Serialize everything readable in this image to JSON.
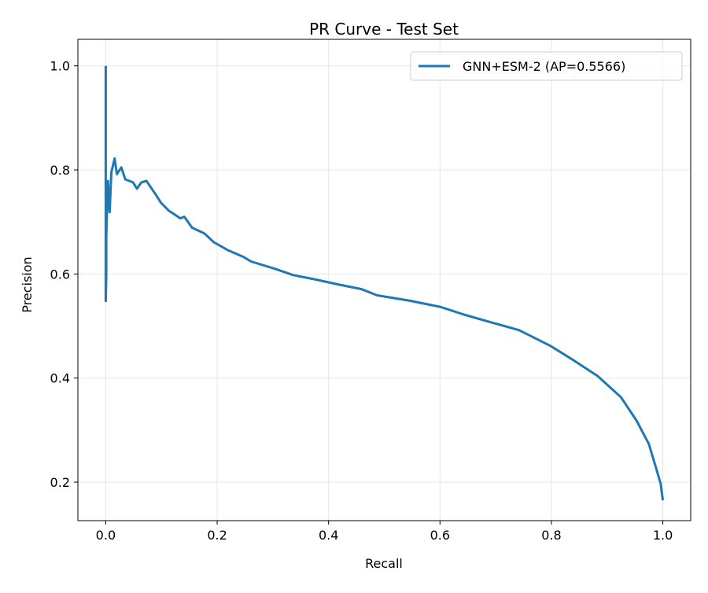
{
  "chart_data": {
    "type": "line",
    "title": "PR Curve - Test Set",
    "xlabel": "Recall",
    "ylabel": "Precision",
    "xlim": [
      -0.05,
      1.05
    ],
    "ylim": [
      0.126,
      1.051
    ],
    "xticks": [
      0.0,
      0.2,
      0.4,
      0.6,
      0.8,
      1.0
    ],
    "xtick_labels": [
      "0.0",
      "0.2",
      "0.4",
      "0.6",
      "0.8",
      "1.0"
    ],
    "yticks": [
      0.2,
      0.4,
      0.6,
      0.8,
      1.0
    ],
    "ytick_labels": [
      "0.2",
      "0.4",
      "0.6",
      "0.8",
      "1.0"
    ],
    "grid": true,
    "legend_position": "top-right",
    "series": [
      {
        "name": "GNN+ESM-2 (AP=0.5566)",
        "color": "#1f77b4",
        "x": [
          0,
          0,
          0.001,
          0.001,
          0.004,
          0.007,
          0.01,
          0.016,
          0.02,
          0.028,
          0.035,
          0.049,
          0.056,
          0.064,
          0.073,
          0.092,
          0.099,
          0.113,
          0.134,
          0.141,
          0.155,
          0.177,
          0.194,
          0.219,
          0.247,
          0.261,
          0.304,
          0.336,
          0.374,
          0.417,
          0.459,
          0.487,
          0.544,
          0.6,
          0.643,
          0.692,
          0.742,
          0.798,
          0.84,
          0.883,
          0.925,
          0.953,
          0.975,
          0.989,
          0.996,
          1.0
        ],
        "y": [
          1.0,
          0.548,
          0.6,
          0.673,
          0.779,
          0.719,
          0.795,
          0.822,
          0.792,
          0.805,
          0.782,
          0.776,
          0.764,
          0.776,
          0.779,
          0.749,
          0.737,
          0.722,
          0.707,
          0.71,
          0.689,
          0.678,
          0.661,
          0.646,
          0.633,
          0.624,
          0.61,
          0.598,
          0.59,
          0.58,
          0.571,
          0.559,
          0.549,
          0.537,
          0.522,
          0.507,
          0.492,
          0.462,
          0.434,
          0.404,
          0.363,
          0.318,
          0.273,
          0.223,
          0.197,
          0.165
        ]
      }
    ]
  }
}
